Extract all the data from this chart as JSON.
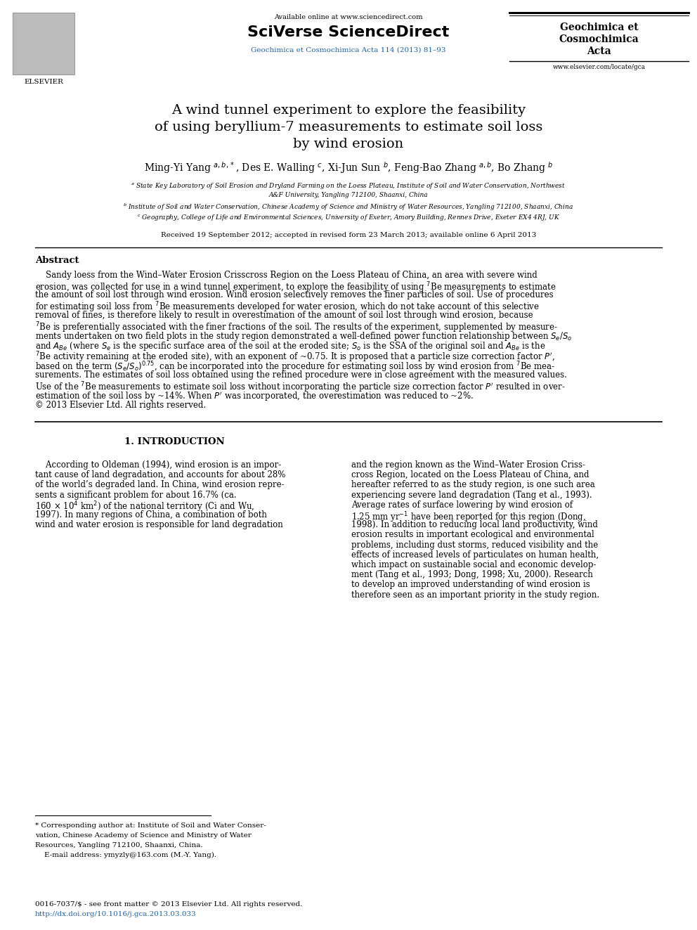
{
  "bg_color": "#ffffff",
  "available_online": "Available online at www.sciencedirect.com",
  "sciverse": "SciVerse ScienceDirect",
  "journal_blue_text": "Geochimica et Cosmochimica Acta 114 (2013) 81–93",
  "journal_right": [
    "Geochimica et",
    "Cosmochimica",
    "Acta"
  ],
  "elsevier_text": "ELSEVIER",
  "website": "www.elsevier.com/locate/gca",
  "title_lines": [
    "A wind tunnel experiment to explore the feasibility",
    "of using beryllium-7 measurements to estimate soil loss",
    "by wind erosion"
  ],
  "authors_text": "Ming-Yi Yang $^{a,b,*}$, Des E. Walling $^{c}$, Xi-Jun Sun $^{b}$, Feng-Bao Zhang $^{a,b}$, Bo Zhang $^{b}$",
  "affil_lines": [
    "$^{a}$ State Key Laboratory of Soil Erosion and Dryland Farming on the Loess Plateau, Institute of Soil and Water Conservation, Northwest",
    "A&F University, Yangling 712100, Shaanxi, China",
    "$^{b}$ Institute of Soil and Water Conservation, Chinese Academy of Science and Ministry of Water Resources, Yangling 712100, Shaanxi, China",
    "$^{c}$ Geography, College of Life and Environmental Sciences, University of Exeter, Amory Building, Rennes Drive, Exeter EX4 4RJ, UK"
  ],
  "received": "Received 19 September 2012; accepted in revised form 23 March 2013; available online 6 April 2013",
  "abstract_title": "Abstract",
  "abstract_lines": [
    "    Sandy loess from the Wind–Water Erosion Crisscross Region on the Loess Plateau of China, an area with severe wind",
    "erosion, was collected for use in a wind tunnel experiment, to explore the feasibility of using $^{7}$Be measurements to estimate",
    "the amount of soil lost through wind erosion. Wind erosion selectively removes the finer particles of soil. Use of procedures",
    "for estimating soil loss from $^{7}$Be measurements developed for water erosion, which do not take account of this selective",
    "removal of fines, is therefore likely to result in overestimation of the amount of soil lost through wind erosion, because",
    "$^{7}$Be is preferentially associated with the finer fractions of the soil. The results of the experiment, supplemented by measure-",
    "ments undertaken on two field plots in the study region demonstrated a well-defined power function relationship between $S_e$/$S_o$",
    "and $A_{Be}$ (where $S_e$ is the specific surface area of the soil at the eroded site; $S_o$ is the SSA of the original soil and $A_{Be}$ is the",
    "$^{7}$Be activity remaining at the eroded site), with an exponent of ~0.75. It is proposed that a particle size correction factor $P'$,",
    "based on the term $(S_e/S_o)^{0.75}$, can be incorporated into the procedure for estimating soil loss by wind erosion from $^{7}$Be mea-",
    "surements. The estimates of soil loss obtained using the refined procedure were in close agreement with the measured values.",
    "Use of the $^{7}$Be measurements to estimate soil loss without incorporating the particle size correction factor $P'$ resulted in over-",
    "estimation of the soil loss by ~14%. When $P'$ was incorporated, the overestimation was reduced to ~2%.",
    "© 2013 Elsevier Ltd. All rights reserved."
  ],
  "section1_title": "1. INTRODUCTION",
  "intro_left_lines": [
    "    According to Oldeman (1994), wind erosion is an impor-",
    "tant cause of land degradation, and accounts for about 28%",
    "of the world’s degraded land. In China, wind erosion repre-",
    "sents a significant problem for about 16.7% (ca.",
    "160 × 10$^{4}$ km$^{2}$) of the national territory (Ci and Wu,",
    "1997). In many regions of China, a combination of both",
    "wind and water erosion is responsible for land degradation"
  ],
  "intro_right_lines": [
    "and the region known as the Wind–Water Erosion Criss-",
    "cross Region, located on the Loess Plateau of China, and",
    "hereafter referred to as the study region, is one such area",
    "experiencing severe land degradation (Tang et al., 1993).",
    "Average rates of surface lowering by wind erosion of",
    "1.25 mm yr$^{-1}$ have been reported for this region (Dong,",
    "1998). In addition to reducing local land productivity, wind",
    "erosion results in important ecological and environmental",
    "problems, including dust storms, reduced visibility and the",
    "effects of increased levels of particulates on human health,",
    "which impact on sustainable social and economic develop-",
    "ment (Tang et al., 1993; Dong, 1998; Xu, 2000). Research",
    "to develop an improved understanding of wind erosion is",
    "therefore seen as an important priority in the study region."
  ],
  "footnote_lines": [
    "* Corresponding author at: Institute of Soil and Water Conser-",
    "vation, Chinese Academy of Science and Ministry of Water",
    "Resources, Yangling 712100, Shaanxi, China.",
    "    E-mail address: ymyzly@163.com (M.-Y. Yang)."
  ],
  "footer_text": "0016-7037/$ - see front matter © 2013 Elsevier Ltd. All rights reserved.",
  "footer_doi": "http://dx.doi.org/10.1016/j.gca.2013.03.033",
  "blue_color": "#2060a0",
  "link_color": "#2060a0"
}
